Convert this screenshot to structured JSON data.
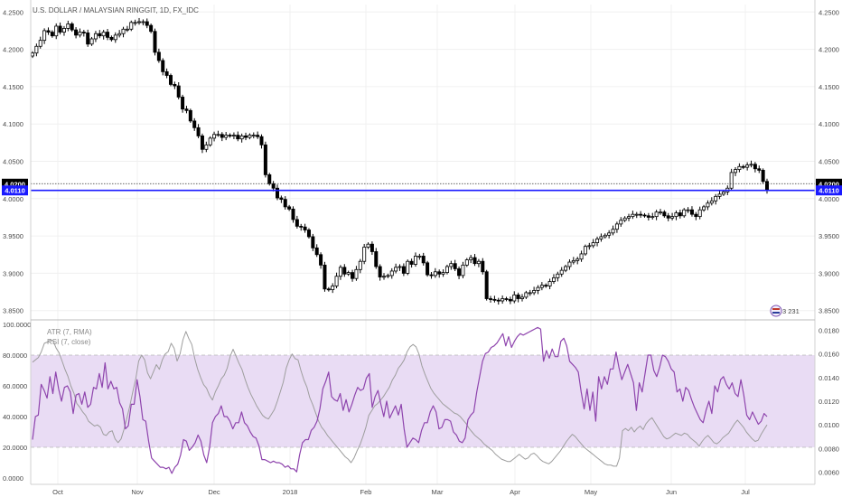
{
  "chart_data": [
    {
      "type": "candlestick",
      "title": "U.S. DOLLAR / MALAYSIAN RINGGIT, 1D, FX_IDC",
      "ylim": [
        3.84,
        4.26
      ],
      "yticks": [
        "4.2500",
        "4.2000",
        "4.1500",
        "4.1000",
        "4.0500",
        "4.0000",
        "3.9500",
        "3.9000",
        "3.8500"
      ],
      "x_labels": [
        "Oct",
        "Nov",
        "Dec",
        "2018",
        "Feb",
        "Mar",
        "Apr",
        "May",
        "Jun",
        "Jul"
      ],
      "close": [
        4.195,
        4.204,
        4.212,
        4.225,
        4.223,
        4.218,
        4.231,
        4.223,
        4.228,
        4.234,
        4.226,
        4.219,
        4.223,
        4.222,
        4.207,
        4.214,
        4.221,
        4.218,
        4.223,
        4.216,
        4.213,
        4.219,
        4.221,
        4.227,
        4.227,
        4.236,
        4.236,
        4.237,
        4.237,
        4.232,
        4.224,
        4.196,
        4.185,
        4.17,
        4.165,
        4.153,
        4.151,
        4.136,
        4.12,
        4.118,
        4.104,
        4.095,
        4.084,
        4.066,
        4.072,
        4.081,
        4.086,
        4.086,
        4.082,
        4.085,
        4.084,
        4.085,
        4.08,
        4.084,
        4.082,
        4.085,
        4.085,
        4.083,
        4.072,
        4.032,
        4.02,
        4.014,
        4.001,
        3.999,
        3.989,
        3.986,
        3.972,
        3.963,
        3.962,
        3.958,
        3.949,
        3.934,
        3.925,
        3.911,
        3.879,
        3.878,
        3.883,
        3.896,
        3.908,
        3.899,
        3.901,
        3.893,
        3.905,
        3.916,
        3.935,
        3.939,
        3.929,
        3.909,
        3.895,
        3.896,
        3.897,
        3.903,
        3.908,
        3.909,
        3.9,
        3.916,
        3.912,
        3.923,
        3.923,
        3.914,
        3.898,
        3.897,
        3.902,
        3.899,
        3.901,
        3.909,
        3.913,
        3.906,
        3.897,
        3.911,
        3.918,
        3.921,
        3.913,
        3.916,
        3.902,
        3.866,
        3.865,
        3.864,
        3.863,
        3.866,
        3.865,
        3.863,
        3.871,
        3.866,
        3.868,
        3.874,
        3.874,
        3.877,
        3.881,
        3.884,
        3.883,
        3.889,
        3.894,
        3.899,
        3.904,
        3.909,
        3.915,
        3.917,
        3.919,
        3.926,
        3.936,
        3.937,
        3.941,
        3.946,
        3.949,
        3.951,
        3.954,
        3.959,
        3.966,
        3.971,
        3.974,
        3.976,
        3.979,
        3.979,
        3.978,
        3.977,
        3.975,
        3.976,
        3.982,
        3.982,
        3.977,
        3.974,
        3.976,
        3.981,
        3.977,
        3.985,
        3.985,
        3.979,
        3.976,
        3.985,
        3.989,
        3.994,
        3.997,
        4.003,
        4.006,
        4.009,
        4.014,
        4.035,
        4.039,
        4.043,
        4.042,
        4.045,
        4.046,
        4.04,
        4.038,
        4.023,
        4.011
      ],
      "annotations": [
        "4.0200",
        "4.0110"
      ],
      "legend_badge": "3  231"
    },
    {
      "type": "line",
      "series": [
        {
          "name": "ATR (7, RMA)",
          "axis": "right",
          "color": "#9e9e9e"
        },
        {
          "name": "RSI (7, close)",
          "axis": "left",
          "color": "#8e44ad"
        }
      ],
      "ylim_left": [
        0,
        100
      ],
      "ylim_right": [
        0.0055,
        0.0185
      ],
      "yticks_left": [
        "100.0000",
        "80.0000",
        "60.0000",
        "40.0000",
        "20.0000",
        "0.0000"
      ],
      "yticks_right": [
        "0.0180",
        "0.0160",
        "0.0140",
        "0.0120",
        "0.0100",
        "0.0080",
        "0.0060"
      ],
      "band": [
        20,
        80
      ],
      "rsi": [
        25,
        40,
        41,
        61,
        57,
        52,
        66,
        55,
        69,
        58,
        50,
        59,
        60,
        56,
        42,
        54,
        55,
        48,
        56,
        46,
        48,
        59,
        58,
        68,
        59,
        75,
        58,
        63,
        58,
        59,
        49,
        45,
        32,
        34,
        48,
        48,
        64,
        53,
        38,
        37,
        24,
        13,
        11,
        9,
        7,
        7,
        6,
        7,
        3,
        7,
        9,
        15,
        25,
        24,
        18,
        20,
        23,
        28,
        24,
        15,
        10,
        20,
        36,
        40,
        42,
        47,
        40,
        40,
        37,
        32,
        36,
        36,
        43,
        36,
        34,
        30,
        27,
        26,
        21,
        12,
        12,
        11,
        10,
        11,
        10,
        10,
        9,
        7,
        8,
        6,
        6,
        4,
        15,
        23,
        25,
        25,
        31,
        33,
        37,
        45,
        58,
        63,
        69,
        53,
        51,
        50,
        55,
        44,
        51,
        43,
        48,
        54,
        59,
        57,
        58,
        65,
        68,
        46,
        53,
        57,
        48,
        40,
        50,
        39,
        43,
        47,
        41,
        48,
        32,
        20,
        23,
        26,
        25,
        23,
        31,
        36,
        36,
        43,
        47,
        43,
        32,
        33,
        38,
        38,
        37,
        30,
        28,
        24,
        23,
        26,
        38,
        41,
        43,
        56,
        66,
        76,
        81,
        82,
        85,
        86,
        88,
        91,
        94,
        86,
        92,
        85,
        89,
        92,
        94,
        93,
        94,
        95,
        96,
        97,
        98,
        97,
        76,
        83,
        78,
        84,
        79,
        79,
        89,
        91,
        86,
        76,
        74,
        72,
        69,
        56,
        45,
        58,
        44,
        56,
        37,
        66,
        58,
        66,
        61,
        71,
        71,
        82,
        72,
        64,
        69,
        74,
        68,
        62,
        44,
        62,
        56,
        68,
        80,
        80,
        70,
        66,
        72,
        80,
        79,
        76,
        71,
        69,
        56,
        58,
        50,
        59,
        57,
        51,
        46,
        42,
        38,
        36,
        44,
        50,
        42,
        60,
        56,
        64,
        66,
        61,
        58,
        62,
        55,
        53,
        64,
        54,
        41,
        38,
        43,
        39,
        35,
        37,
        42,
        40
      ],
      "atr": [
        0.0153,
        0.0155,
        0.0157,
        0.0162,
        0.0169,
        0.017,
        0.0172,
        0.0171,
        0.0165,
        0.0161,
        0.0154,
        0.0147,
        0.0141,
        0.0133,
        0.0127,
        0.0118,
        0.0115,
        0.0111,
        0.0108,
        0.0103,
        0.0101,
        0.0099,
        0.01,
        0.0098,
        0.0092,
        0.0091,
        0.0094,
        0.0095,
        0.0088,
        0.0085,
        0.0088,
        0.0096,
        0.0106,
        0.0116,
        0.0128,
        0.0139,
        0.0154,
        0.0159,
        0.0155,
        0.0144,
        0.0139,
        0.0145,
        0.0151,
        0.0147,
        0.0155,
        0.016,
        0.0162,
        0.0169,
        0.0165,
        0.0154,
        0.016,
        0.0172,
        0.0179,
        0.0173,
        0.0168,
        0.0156,
        0.0147,
        0.014,
        0.0134,
        0.0131,
        0.0125,
        0.0121,
        0.0128,
        0.0133,
        0.0139,
        0.0142,
        0.0148,
        0.0158,
        0.0164,
        0.0158,
        0.0152,
        0.0147,
        0.0139,
        0.0132,
        0.0126,
        0.0121,
        0.0116,
        0.0112,
        0.0108,
        0.0106,
        0.0105,
        0.0109,
        0.0113,
        0.012,
        0.0128,
        0.0136,
        0.0148,
        0.0155,
        0.016,
        0.0156,
        0.0155,
        0.0146,
        0.0138,
        0.0132,
        0.0123,
        0.0117,
        0.011,
        0.0103,
        0.0098,
        0.0095,
        0.0091,
        0.0088,
        0.0085,
        0.0082,
        0.0079,
        0.0076,
        0.0073,
        0.0071,
        0.0068,
        0.0072,
        0.0078,
        0.0083,
        0.009,
        0.0098,
        0.0108,
        0.0112,
        0.0116,
        0.0118,
        0.0121,
        0.0124,
        0.0128,
        0.0132,
        0.0138,
        0.0142,
        0.0148,
        0.0151,
        0.0155,
        0.0162,
        0.0166,
        0.0168,
        0.0166,
        0.016,
        0.015,
        0.0143,
        0.0137,
        0.0131,
        0.0127,
        0.0124,
        0.0121,
        0.0118,
        0.0116,
        0.0114,
        0.0112,
        0.011,
        0.0109,
        0.0107,
        0.0104,
        0.0101,
        0.0097,
        0.0094,
        0.0091,
        0.0089,
        0.0087,
        0.0084,
        0.0082,
        0.008,
        0.0078,
        0.0075,
        0.0073,
        0.0071,
        0.007,
        0.0069,
        0.0069,
        0.0071,
        0.0073,
        0.0075,
        0.0073,
        0.0071,
        0.0072,
        0.0075,
        0.0076,
        0.0074,
        0.0071,
        0.0069,
        0.0068,
        0.0067,
        0.0069,
        0.0072,
        0.0075,
        0.0078,
        0.0082,
        0.0086,
        0.0089,
        0.0092,
        0.009,
        0.0087,
        0.0084,
        0.0081,
        0.0079,
        0.0077,
        0.0075,
        0.0073,
        0.0071,
        0.0069,
        0.0067,
        0.0066,
        0.0066,
        0.0065,
        0.0065,
        0.0072,
        0.0095,
        0.0097,
        0.0095,
        0.0098,
        0.0094,
        0.0097,
        0.0099,
        0.0096,
        0.0101,
        0.0104,
        0.0106,
        0.0102,
        0.0098,
        0.0094,
        0.009,
        0.0088,
        0.0089,
        0.0091,
        0.0093,
        0.0092,
        0.0091,
        0.0093,
        0.0092,
        0.0089,
        0.0087,
        0.0085,
        0.0082,
        0.0086,
        0.0089,
        0.0091,
        0.0088,
        0.0085,
        0.0084,
        0.0086,
        0.0089,
        0.0091,
        0.0093,
        0.0097,
        0.0101,
        0.0104,
        0.0101,
        0.0098,
        0.0094,
        0.0091,
        0.0088,
        0.0086,
        0.0087,
        0.0092,
        0.0096,
        0.01
      ]
    }
  ]
}
